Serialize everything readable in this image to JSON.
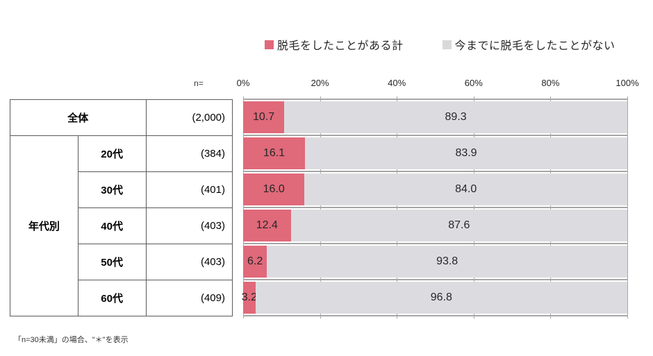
{
  "legend": {
    "items": [
      {
        "label": "脱毛をしたことがある計",
        "color": "#e0697a"
      },
      {
        "label": "今までに脱毛をしたことがない",
        "color": "#d9d9dc"
      }
    ]
  },
  "table": {
    "n_header": "n=",
    "total": {
      "label": "全体",
      "n": "(2,000)"
    },
    "group": {
      "label": "年代別",
      "rows": [
        {
          "label": "20代",
          "n": "(384)"
        },
        {
          "label": "30代",
          "n": "(401)"
        },
        {
          "label": "40代",
          "n": "(403)"
        },
        {
          "label": "50代",
          "n": "(403)"
        },
        {
          "label": "60代",
          "n": "(409)"
        }
      ]
    }
  },
  "chart_data": {
    "type": "bar",
    "orientation": "horizontal",
    "stacked": true,
    "title": "",
    "categories": [
      "全体",
      "20代",
      "30代",
      "40代",
      "50代",
      "60代"
    ],
    "n_labels": [
      "(2,000)",
      "(384)",
      "(401)",
      "(403)",
      "(403)",
      "(409)"
    ],
    "series": [
      {
        "name": "脱毛をしたことがある計",
        "color": "#e0697a",
        "values": [
          10.7,
          16.1,
          16.0,
          12.4,
          6.2,
          3.2
        ]
      },
      {
        "name": "今までに脱毛をしたことがない",
        "color": "#dcdce0",
        "values": [
          89.3,
          83.9,
          84.0,
          87.6,
          93.8,
          96.8
        ]
      }
    ],
    "x_ticks": [
      "0%",
      "20%",
      "40%",
      "60%",
      "80%",
      "100%"
    ],
    "xlim": [
      0,
      100
    ],
    "value_label_decimals": 1,
    "grid": "vertical-major"
  },
  "footer": {
    "note": "「n=30未満」の場合、\"＊\"を表示"
  }
}
